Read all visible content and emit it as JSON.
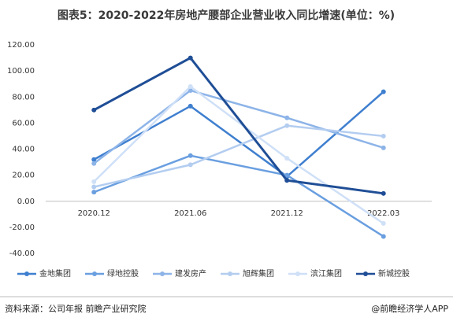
{
  "chart_data": {
    "type": "line",
    "title": "图表5：2020-2022年房地产腰部企业营业收入同比增速(单位：%)",
    "categories": [
      "2020.12",
      "2021.06",
      "2021.12",
      "2022.03"
    ],
    "series": [
      {
        "name": "金地集团",
        "color": "#3f7fcf",
        "values": [
          32,
          73,
          19,
          84
        ]
      },
      {
        "name": "绿地控股",
        "color": "#6a9fe0",
        "values": [
          7,
          35,
          20,
          -27
        ]
      },
      {
        "name": "建发房产",
        "color": "#8db4e8",
        "values": [
          29,
          85,
          64,
          41
        ]
      },
      {
        "name": "旭辉集团",
        "color": "#b3cdf0",
        "values": [
          11,
          28,
          58,
          50
        ]
      },
      {
        "name": "滨江集团",
        "color": "#cfe0f7",
        "values": [
          15,
          88,
          33,
          -17
        ]
      },
      {
        "name": "新城控股",
        "color": "#1f4e96",
        "values": [
          70,
          110,
          16,
          6
        ]
      }
    ],
    "ylim": [
      -40,
      120
    ],
    "yticks": [
      {
        "value": -40,
        "label": "-40.00"
      },
      {
        "value": -20,
        "label": "-20.00"
      },
      {
        "value": 0,
        "label": "0.00"
      },
      {
        "value": 20,
        "label": "20.00"
      },
      {
        "value": 40,
        "label": "40.00"
      },
      {
        "value": 60,
        "label": "60.00"
      },
      {
        "value": 80,
        "label": "80.00"
      },
      {
        "value": 100,
        "label": "100.00"
      },
      {
        "value": 120,
        "label": "120.00"
      }
    ],
    "legend": "bottom",
    "source": "资料来源：公司年报 前瞻产业研究院",
    "credit": "@前瞻经济学人APP"
  }
}
